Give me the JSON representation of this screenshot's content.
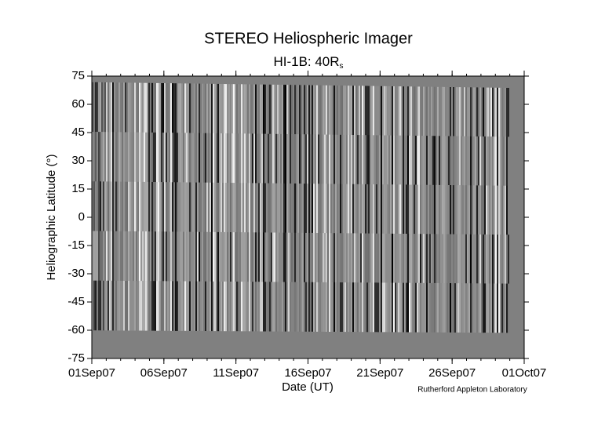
{
  "chart_data": {
    "type": "heatmap",
    "title": "STEREO Heliospheric Imager",
    "subtitle": {
      "text": "HI-1B: 40R",
      "subscript": "s"
    },
    "xlabel": "Date (UT)",
    "ylabel": "Heliographic Latitude (°)",
    "credit": "Rutherford Appleton Laboratory",
    "xlim": [
      "01Sep07",
      "01Oct07"
    ],
    "xticks": [
      "01Sep07",
      "06Sep07",
      "11Sep07",
      "16Sep07",
      "21Sep07",
      "26Sep07",
      "01Oct07"
    ],
    "ylim": [
      -75,
      75
    ],
    "yticks": [
      75,
      60,
      45,
      30,
      15,
      0,
      -15,
      -30,
      -45,
      -60,
      -75
    ],
    "background": "#808080"
  }
}
